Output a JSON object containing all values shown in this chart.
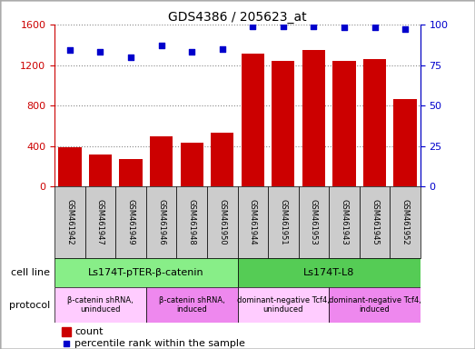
{
  "title": "GDS4386 / 205623_at",
  "samples": [
    "GSM461942",
    "GSM461947",
    "GSM461949",
    "GSM461946",
    "GSM461948",
    "GSM461950",
    "GSM461944",
    "GSM461951",
    "GSM461953",
    "GSM461943",
    "GSM461945",
    "GSM461952"
  ],
  "counts": [
    390,
    320,
    270,
    500,
    430,
    530,
    1310,
    1240,
    1350,
    1240,
    1260,
    860
  ],
  "percentile": [
    84,
    83,
    80,
    87,
    83,
    85,
    99,
    99,
    99,
    98,
    98,
    97
  ],
  "ylim_left": [
    0,
    1600
  ],
  "ylim_right": [
    0,
    100
  ],
  "yticks_left": [
    0,
    400,
    800,
    1200,
    1600
  ],
  "yticks_right": [
    0,
    25,
    50,
    75,
    100
  ],
  "bar_color": "#cc0000",
  "dot_color": "#0000cc",
  "cell_line_data": [
    {
      "label": "Ls174T-pTER-β-catenin",
      "start": 0,
      "end": 6,
      "color": "#88ee88"
    },
    {
      "label": "Ls174T-L8",
      "start": 6,
      "end": 12,
      "color": "#55cc55"
    }
  ],
  "protocol_data": [
    {
      "label": "β-catenin shRNA,\nuninduced",
      "start": 0,
      "end": 3,
      "color": "#ffccff"
    },
    {
      "label": "β-catenin shRNA,\ninduced",
      "start": 3,
      "end": 6,
      "color": "#ee88ee"
    },
    {
      "label": "dominant-negative Tcf4,\nuninduced",
      "start": 6,
      "end": 9,
      "color": "#ffccff"
    },
    {
      "label": "dominant-negative Tcf4,\ninduced",
      "start": 9,
      "end": 12,
      "color": "#ee88ee"
    }
  ],
  "legend_count_label": "count",
  "legend_pct_label": "percentile rank within the sample",
  "cell_line_label": "cell line",
  "protocol_label": "protocol",
  "grid_color": "#888888",
  "tick_label_color_left": "#cc0000",
  "tick_label_color_right": "#0000cc",
  "sample_box_color": "#cccccc",
  "figure_border_color": "#aaaaaa"
}
